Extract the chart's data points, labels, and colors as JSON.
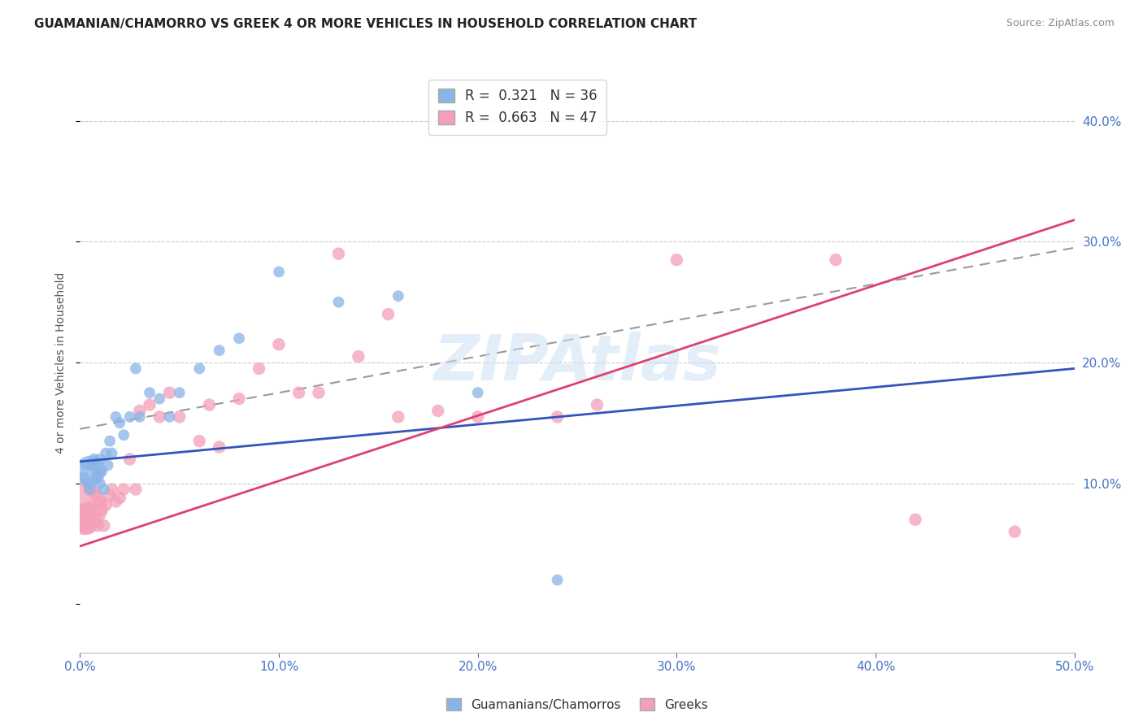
{
  "title": "GUAMANIAN/CHAMORRO VS GREEK 4 OR MORE VEHICLES IN HOUSEHOLD CORRELATION CHART",
  "source": "Source: ZipAtlas.com",
  "ylabel": "4 or more Vehicles in Household",
  "xlim": [
    0.0,
    0.5
  ],
  "ylim": [
    -0.04,
    0.44
  ],
  "xticks": [
    0.0,
    0.1,
    0.2,
    0.3,
    0.4,
    0.5
  ],
  "ytick_labels_right": [
    "40.0%",
    "30.0%",
    "20.0%",
    "10.0%"
  ],
  "ytick_positions_right": [
    0.4,
    0.3,
    0.2,
    0.1
  ],
  "background_color": "#ffffff",
  "watermark": "ZIPAtlas",
  "legend_R1": "R = 0.321",
  "legend_N1": "N = 36",
  "legend_R2": "R = 0.663",
  "legend_N2": "N = 47",
  "color_blue": "#8ab4e8",
  "color_blue_line": "#3355bb",
  "color_pink": "#f4a0b8",
  "color_pink_line": "#e04070",
  "color_dashed": "#999999",
  "color_axis_labels": "#4472c4",
  "blue_line_start": 0.118,
  "blue_line_end": 0.195,
  "pink_line_start": 0.048,
  "pink_line_end": 0.318,
  "dashed_line_start": 0.145,
  "dashed_line_end": 0.295,
  "guamanian_x": [
    0.002,
    0.003,
    0.004,
    0.005,
    0.005,
    0.006,
    0.007,
    0.008,
    0.008,
    0.009,
    0.01,
    0.01,
    0.011,
    0.012,
    0.013,
    0.014,
    0.015,
    0.016,
    0.018,
    0.02,
    0.022,
    0.025,
    0.028,
    0.03,
    0.035,
    0.04,
    0.045,
    0.05,
    0.06,
    0.07,
    0.08,
    0.1,
    0.13,
    0.16,
    0.2,
    0.24
  ],
  "guamanian_y": [
    0.105,
    0.115,
    0.1,
    0.11,
    0.095,
    0.115,
    0.12,
    0.105,
    0.115,
    0.108,
    0.1,
    0.12,
    0.11,
    0.095,
    0.125,
    0.115,
    0.135,
    0.125,
    0.155,
    0.15,
    0.14,
    0.155,
    0.195,
    0.155,
    0.175,
    0.17,
    0.155,
    0.175,
    0.195,
    0.21,
    0.22,
    0.275,
    0.25,
    0.255,
    0.175,
    0.02
  ],
  "guamanian_sizes": [
    20,
    20,
    20,
    150,
    20,
    20,
    20,
    20,
    20,
    20,
    20,
    20,
    20,
    20,
    20,
    20,
    20,
    20,
    20,
    20,
    20,
    20,
    20,
    20,
    20,
    20,
    20,
    20,
    20,
    20,
    20,
    20,
    20,
    20,
    20,
    20
  ],
  "greek_x": [
    0.001,
    0.002,
    0.003,
    0.004,
    0.005,
    0.005,
    0.006,
    0.007,
    0.008,
    0.008,
    0.009,
    0.01,
    0.011,
    0.012,
    0.013,
    0.015,
    0.016,
    0.018,
    0.02,
    0.022,
    0.025,
    0.028,
    0.03,
    0.035,
    0.04,
    0.045,
    0.05,
    0.06,
    0.065,
    0.07,
    0.08,
    0.09,
    0.1,
    0.11,
    0.12,
    0.13,
    0.14,
    0.155,
    0.16,
    0.18,
    0.2,
    0.24,
    0.26,
    0.3,
    0.38,
    0.42,
    0.47
  ],
  "greek_y": [
    0.08,
    0.07,
    0.075,
    0.065,
    0.08,
    0.095,
    0.075,
    0.068,
    0.072,
    0.09,
    0.065,
    0.085,
    0.078,
    0.065,
    0.082,
    0.09,
    0.095,
    0.085,
    0.088,
    0.095,
    0.12,
    0.095,
    0.16,
    0.165,
    0.155,
    0.175,
    0.155,
    0.135,
    0.165,
    0.13,
    0.17,
    0.195,
    0.215,
    0.175,
    0.175,
    0.29,
    0.205,
    0.24,
    0.155,
    0.16,
    0.155,
    0.155,
    0.165,
    0.285,
    0.285,
    0.07,
    0.06
  ],
  "greek_sizes": [
    400,
    150,
    80,
    50,
    30,
    30,
    25,
    25,
    25,
    25,
    25,
    25,
    25,
    25,
    25,
    25,
    25,
    25,
    25,
    25,
    25,
    25,
    25,
    25,
    25,
    25,
    25,
    25,
    25,
    25,
    25,
    25,
    25,
    25,
    25,
    25,
    25,
    25,
    25,
    25,
    25,
    25,
    25,
    25,
    25,
    25,
    25
  ]
}
